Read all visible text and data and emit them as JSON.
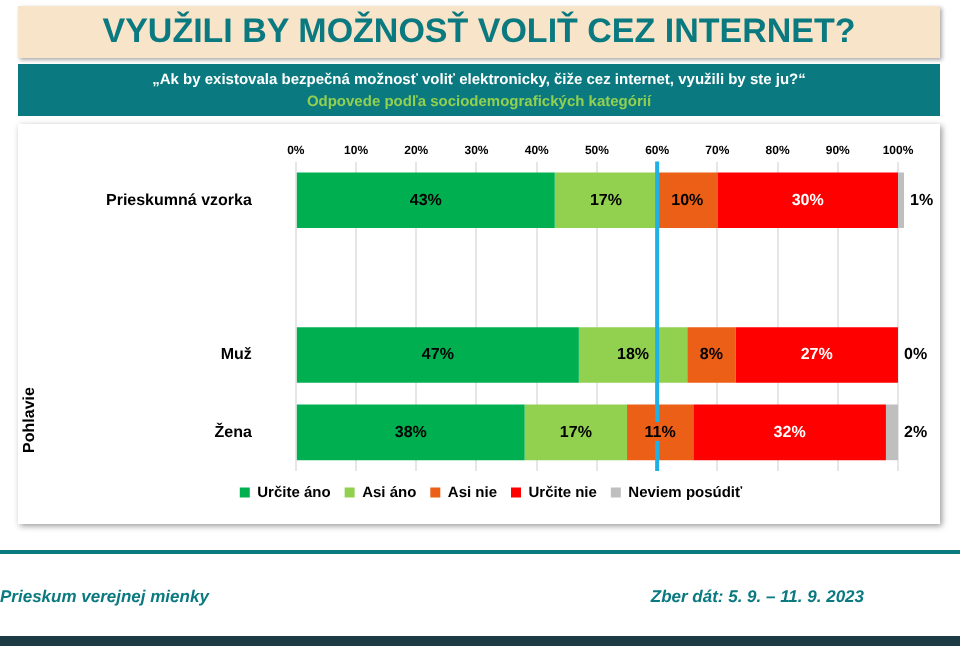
{
  "chart_data": {
    "type": "bar",
    "orientation": "horizontal",
    "stacked": true,
    "title": "VYUŽILI BY MOŽNOSŤ VOLIŤ CEZ INTERNET?",
    "subtitle": "„Ak by existovala bezpečná možnosť voliť elektronicky, čiže cez internet, využili by ste ju?“",
    "ylabel": "Pohlavie",
    "annotations": [
      "Odpovede podľa sociodemografických kategórií",
      "Prieskum verejnej mienky",
      "Zber dát: 5. 9. – 11. 9. 2023"
    ],
    "categories": [
      "Prieskumná vzorka",
      null,
      "Muž",
      "Žena"
    ],
    "series": [
      {
        "name": "Určite áno",
        "color": "#00b050",
        "values": [
          43,
          null,
          47,
          38
        ],
        "value_labels": [
          "43%",
          null,
          "47%",
          "38%"
        ]
      },
      {
        "name": "Asi áno",
        "color": "#92d050",
        "values": [
          17,
          null,
          18,
          17
        ],
        "value_labels": [
          "17%",
          null,
          "18%",
          "17%"
        ]
      },
      {
        "name": "Asi nie",
        "color": "#ec5f17",
        "values": [
          10,
          null,
          8,
          11
        ],
        "value_labels": [
          "10%",
          null,
          "8%",
          "11%"
        ]
      },
      {
        "name": "Určite nie",
        "color": "#ff0000",
        "values": [
          30,
          null,
          27,
          32
        ],
        "value_labels": [
          "30%",
          null,
          "27%",
          "32%"
        ]
      },
      {
        "name": "Neviem posúdiť",
        "color": "#bfbfbf",
        "values": [
          1,
          null,
          0,
          2
        ],
        "value_labels": [
          "1%",
          null,
          "0%",
          "2%"
        ]
      }
    ],
    "xlim": [
      0,
      101
    ],
    "xticks": [
      {
        "value": 0,
        "label": "0%"
      },
      {
        "value": 10,
        "label": "10%"
      },
      {
        "value": 20,
        "label": "20%"
      },
      {
        "value": 30,
        "label": "30%"
      },
      {
        "value": 40,
        "label": "40%"
      },
      {
        "value": 50,
        "label": "50%"
      },
      {
        "value": 60,
        "label": "60%"
      },
      {
        "value": 70,
        "label": "70%"
      },
      {
        "value": 80,
        "label": "80%"
      },
      {
        "value": 90,
        "label": "90%"
      },
      {
        "value": 100,
        "label": "100%"
      }
    ],
    "ref_lines": [
      {
        "axis": "x",
        "value": 60,
        "color": "#1fb0e6"
      }
    ],
    "grid": "x",
    "legend": "bottom"
  }
}
